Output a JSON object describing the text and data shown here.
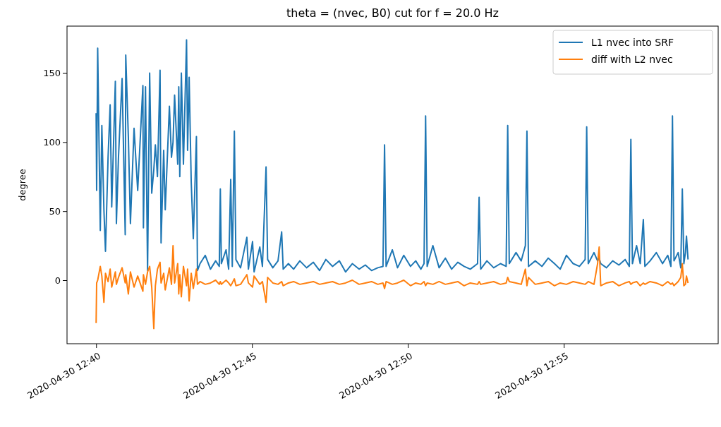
{
  "chart_data": {
    "type": "line",
    "title": "theta = (nvec, B0)     cut for f = 20.0 Hz",
    "ylabel": "degree",
    "x": [
      "2020-04-30T12:40:00",
      "2020-04-30T12:40:01",
      "2020-04-30T12:40:03",
      "2020-04-30T12:40:08",
      "2020-04-30T12:40:11",
      "2020-04-30T12:40:15",
      "2020-04-30T12:40:18",
      "2020-04-30T12:40:23",
      "2020-04-30T12:40:27",
      "2020-04-30T12:40:30",
      "2020-04-30T12:40:37",
      "2020-04-30T12:40:39",
      "2020-04-30T12:40:43",
      "2020-04-30T12:40:50",
      "2020-04-30T12:40:56",
      "2020-04-30T12:40:57",
      "2020-04-30T12:41:02",
      "2020-04-30T12:41:06",
      "2020-04-30T12:41:13",
      "2020-04-30T12:41:20",
      "2020-04-30T12:41:30",
      "2020-04-30T12:41:31",
      "2020-04-30T12:41:35",
      "2020-04-30T12:41:39",
      "2020-04-30T12:41:43",
      "2020-04-30T12:41:47",
      "2020-04-30T12:41:51",
      "2020-04-30T12:41:54",
      "2020-04-30T12:41:58",
      "2020-04-30T12:42:03",
      "2020-04-30T12:42:05",
      "2020-04-30T12:42:10",
      "2020-04-30T12:42:13",
      "2020-04-30T12:42:21",
      "2020-04-30T12:42:25",
      "2020-04-30T12:42:28",
      "2020-04-30T12:42:31",
      "2020-04-30T12:42:37",
      "2020-04-30T12:42:39",
      "2020-04-30T12:42:41",
      "2020-04-30T12:42:44",
      "2020-04-30T12:42:48",
      "2020-04-30T12:42:54",
      "2020-04-30T12:42:56",
      "2020-04-30T12:42:59",
      "2020-04-30T12:43:03",
      "2020-04-30T12:43:07",
      "2020-04-30T12:43:13",
      "2020-04-30T12:43:15",
      "2020-04-30T12:43:20",
      "2020-04-30T12:43:30",
      "2020-04-30T12:43:40",
      "2020-04-30T12:43:50",
      "2020-04-30T12:43:57",
      "2020-04-30T12:43:59",
      "2020-04-30T12:44:01",
      "2020-04-30T12:44:10",
      "2020-04-30T12:44:15",
      "2020-04-30T12:44:19",
      "2020-04-30T12:44:22",
      "2020-04-30T12:44:26",
      "2020-04-30T12:44:29",
      "2020-04-30T12:44:38",
      "2020-04-30T12:44:50",
      "2020-04-30T12:44:53",
      "2020-04-30T12:45:01",
      "2020-04-30T12:45:04",
      "2020-04-30T12:45:15",
      "2020-04-30T12:45:20",
      "2020-04-30T12:45:27",
      "2020-04-30T12:45:30",
      "2020-04-30T12:45:40",
      "2020-04-30T12:45:50",
      "2020-04-30T12:45:57",
      "2020-04-30T12:46:00",
      "2020-04-30T12:46:10",
      "2020-04-30T12:46:20",
      "2020-04-30T12:46:32",
      "2020-04-30T12:46:45",
      "2020-04-30T12:46:58",
      "2020-04-30T12:47:10",
      "2020-04-30T12:47:22",
      "2020-04-30T12:47:35",
      "2020-04-30T12:47:48",
      "2020-04-30T12:48:00",
      "2020-04-30T12:48:13",
      "2020-04-30T12:48:26",
      "2020-04-30T12:48:38",
      "2020-04-30T12:48:50",
      "2020-04-30T12:49:02",
      "2020-04-30T12:49:12",
      "2020-04-30T12:49:15",
      "2020-04-30T12:49:18",
      "2020-04-30T12:49:30",
      "2020-04-30T12:49:40",
      "2020-04-30T12:49:52",
      "2020-04-30T12:50:05",
      "2020-04-30T12:50:15",
      "2020-04-30T12:50:25",
      "2020-04-30T12:50:31",
      "2020-04-30T12:50:34",
      "2020-04-30T12:50:37",
      "2020-04-30T12:50:48",
      "2020-04-30T12:51:00",
      "2020-04-30T12:51:12",
      "2020-04-30T12:51:24",
      "2020-04-30T12:51:36",
      "2020-04-30T12:51:48",
      "2020-04-30T12:52:00",
      "2020-04-30T12:52:14",
      "2020-04-30T12:52:17",
      "2020-04-30T12:52:20",
      "2020-04-30T12:52:32",
      "2020-04-30T12:52:45",
      "2020-04-30T12:52:58",
      "2020-04-30T12:53:09",
      "2020-04-30T12:53:12",
      "2020-04-30T12:53:15",
      "2020-04-30T12:53:28",
      "2020-04-30T12:53:38",
      "2020-04-30T12:53:46",
      "2020-04-30T12:53:49",
      "2020-04-30T12:53:52",
      "2020-04-30T12:54:05",
      "2020-04-30T12:54:18",
      "2020-04-30T12:54:30",
      "2020-04-30T12:54:42",
      "2020-04-30T12:54:53",
      "2020-04-30T12:55:05",
      "2020-04-30T12:55:18",
      "2020-04-30T12:55:30",
      "2020-04-30T12:55:41",
      "2020-04-30T12:55:44",
      "2020-04-30T12:55:47",
      "2020-04-30T12:55:58",
      "2020-04-30T12:56:05",
      "2020-04-30T12:56:08",
      "2020-04-30T12:56:11",
      "2020-04-30T12:56:22",
      "2020-04-30T12:56:34",
      "2020-04-30T12:56:46",
      "2020-04-30T12:56:58",
      "2020-04-30T12:57:06",
      "2020-04-30T12:57:09",
      "2020-04-30T12:57:12",
      "2020-04-30T12:57:20",
      "2020-04-30T12:57:27",
      "2020-04-30T12:57:33",
      "2020-04-30T12:57:36",
      "2020-04-30T12:57:46",
      "2020-04-30T12:57:58",
      "2020-04-30T12:58:10",
      "2020-04-30T12:58:20",
      "2020-04-30T12:58:26",
      "2020-04-30T12:58:29",
      "2020-04-30T12:58:32",
      "2020-04-30T12:58:40",
      "2020-04-30T12:58:45",
      "2020-04-30T12:58:48",
      "2020-04-30T12:58:51",
      "2020-04-30T12:58:54",
      "2020-04-30T12:58:56",
      "2020-04-30T12:58:59"
    ],
    "xlim": [
      "2020-04-30T12:39:04",
      "2020-04-30T12:59:57"
    ],
    "xticks": [
      {
        "value": "2020-04-30T12:40",
        "label": "2020-04-30 12:40"
      },
      {
        "value": "2020-04-30T12:45",
        "label": "2020-04-30 12:45"
      },
      {
        "value": "2020-04-30T12:50",
        "label": "2020-04-30 12:50"
      },
      {
        "value": "2020-04-30T12:55",
        "label": "2020-04-30 12:55"
      }
    ],
    "ylim": [
      -46,
      184
    ],
    "yticks": [
      0,
      50,
      100,
      150
    ],
    "legend": "top right",
    "line_style": "solid",
    "series": [
      {
        "name": "L1 nvec into SRF",
        "color": "#1f77b4",
        "values": [
          121,
          65,
          168,
          36,
          112,
          51,
          21,
          89,
          127,
          53,
          144,
          41,
          89,
          146,
          33,
          163,
          104,
          41,
          110,
          65,
          141,
          38,
          140,
          7,
          150,
          63,
          80,
          98,
          75,
          152,
          27,
          94,
          51,
          126,
          89,
          100,
          134,
          84,
          140,
          75,
          150,
          84,
          174,
          94,
          147,
          71,
          30,
          104,
          7,
          12,
          18,
          8,
          14,
          10,
          66,
          12,
          22,
          8,
          73,
          10,
          108,
          15,
          9,
          31,
          8,
          28,
          6,
          24,
          10,
          82,
          15,
          9,
          14,
          35,
          8,
          12,
          8,
          14,
          9,
          13,
          7,
          15,
          10,
          14,
          6,
          12,
          8,
          11,
          7,
          9,
          10,
          98,
          10,
          22,
          9,
          18,
          10,
          14,
          8,
          12,
          119,
          10,
          25,
          9,
          16,
          8,
          13,
          10,
          8,
          12,
          60,
          8,
          14,
          9,
          12,
          10,
          112,
          12,
          20,
          14,
          25,
          108,
          10,
          14,
          10,
          16,
          12,
          8,
          18,
          12,
          10,
          15,
          111,
          12,
          20,
          14,
          16,
          12,
          9,
          14,
          11,
          15,
          10,
          102,
          12,
          25,
          12,
          44,
          10,
          14,
          20,
          12,
          18,
          10,
          119,
          14,
          20,
          9,
          66,
          12,
          20,
          32,
          15
        ]
      },
      {
        "name": "diff with L2 nvec",
        "color": "#ff7f0e",
        "values": [
          -31,
          -2,
          0,
          10,
          3,
          -16,
          5,
          -1,
          8,
          -5,
          6,
          -3,
          2,
          9,
          -2,
          4,
          -10,
          6,
          -5,
          3,
          -8,
          4,
          -3,
          6,
          10,
          -5,
          -35,
          -4,
          8,
          13,
          -2,
          5,
          -7,
          9,
          -3,
          25,
          -2,
          12,
          -10,
          4,
          -12,
          10,
          -4,
          8,
          -15,
          5,
          -6,
          8,
          -3,
          -1,
          -3,
          -2,
          0,
          -3,
          -1,
          -3,
          0,
          -2,
          -4,
          -2,
          1,
          -4,
          -3,
          4,
          -2,
          -5,
          3,
          -3,
          -1,
          -16,
          2,
          -2,
          -3,
          -1,
          -4,
          -2,
          -1,
          -3,
          -2,
          -1,
          -3,
          -2,
          -1,
          -3,
          -2,
          0,
          -3,
          -2,
          -1,
          -3,
          -2,
          -6,
          -1,
          -3,
          -2,
          0,
          -4,
          -2,
          -3,
          -1,
          -4,
          -2,
          -3,
          -1,
          -3,
          -2,
          -1,
          -4,
          -2,
          -3,
          -1,
          -3,
          -2,
          -1,
          -3,
          -2,
          2,
          -1,
          -2,
          -3,
          8,
          -4,
          2,
          -3,
          -2,
          -1,
          -4,
          -2,
          -3,
          -1,
          -2,
          -3,
          -2,
          -1,
          -3,
          12,
          24,
          -4,
          -2,
          -1,
          -4,
          -2,
          -1,
          -3,
          -2,
          -1,
          -4,
          -2,
          -3,
          -1,
          -2,
          -4,
          -1,
          -3,
          -2,
          -4,
          -1,
          2,
          12,
          -4,
          -3,
          3,
          -2
        ]
      }
    ]
  }
}
